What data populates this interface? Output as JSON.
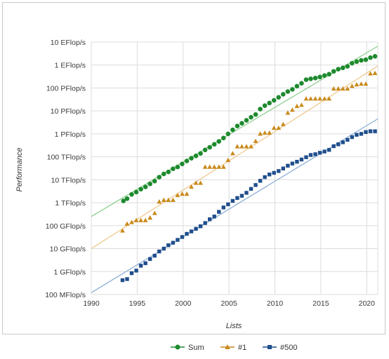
{
  "chart_data": {
    "type": "scatter",
    "title": "",
    "xlabel": "Lists",
    "ylabel": "Performance",
    "x_ticks": [
      "1990",
      "1995",
      "2000",
      "2005",
      "2010",
      "2015",
      "2020"
    ],
    "xlim": [
      1990,
      2021.2
    ],
    "y_scale": "log",
    "y_unit": "MFlop/s",
    "y_ticks": [
      {
        "label": "100 MFlop/s",
        "value": 100.0
      },
      {
        "label": "1 GFlop/s",
        "value": 1000.0
      },
      {
        "label": "10 GFlop/s",
        "value": 10000.0
      },
      {
        "label": "100 GFlop/s",
        "value": 100000.0
      },
      {
        "label": "1 TFlop/s",
        "value": 1000000.0
      },
      {
        "label": "10 TFlop/s",
        "value": 10000000.0
      },
      {
        "label": "100 TFlop/s",
        "value": 100000000.0
      },
      {
        "label": "1 PFlop/s",
        "value": 1000000000.0
      },
      {
        "label": "10 PFlop/s",
        "value": 10000000000.0
      },
      {
        "label": "100 PFlop/s",
        "value": 100000000000.0
      },
      {
        "label": "1 EFlop/s",
        "value": 1000000000000.0
      },
      {
        "label": "10 EFlop/s",
        "value": 10000000000000.0
      }
    ],
    "grid": true,
    "legend_position": "bottom",
    "series": [
      {
        "name": "Sum",
        "color": "#1e8a2e",
        "marker": "circle",
        "trend_color": "#8fd08f",
        "trend_line": {
          "x": [
            1990,
            2021.2
          ],
          "y": [
            250000.0,
            6600000000000.0
          ]
        },
        "points": [
          [
            1993.5,
            1200000.0
          ],
          [
            1993.9,
            1500000.0
          ],
          [
            1994.4,
            2300000.0
          ],
          [
            1994.9,
            2900000.0
          ],
          [
            1995.4,
            3900000.0
          ],
          [
            1995.9,
            4900000.0
          ],
          [
            1996.4,
            6600000.0
          ],
          [
            1996.9,
            8700000.0
          ],
          [
            1997.4,
            13000000.0
          ],
          [
            1997.9,
            18000000.0
          ],
          [
            1998.4,
            22000000.0
          ],
          [
            1998.9,
            30000000.0
          ],
          [
            1999.4,
            36000000.0
          ],
          [
            1999.9,
            49000000.0
          ],
          [
            2000.4,
            66000000.0
          ],
          [
            2000.9,
            87000000.0
          ],
          [
            2001.4,
            110000000.0
          ],
          [
            2001.9,
            140000000.0
          ],
          [
            2002.4,
            200000000.0
          ],
          [
            2002.9,
            260000000.0
          ],
          [
            2003.4,
            350000000.0
          ],
          [
            2003.9,
            470000000.0
          ],
          [
            2004.4,
            660000000.0
          ],
          [
            2004.9,
            1000000000.0
          ],
          [
            2005.4,
            1500000000.0
          ],
          [
            2005.9,
            2200000000.0
          ],
          [
            2006.4,
            2900000000.0
          ],
          [
            2006.9,
            3900000000.0
          ],
          [
            2007.4,
            5300000000.0
          ],
          [
            2007.9,
            7000000000.0
          ],
          [
            2008.4,
            12000000000.0
          ],
          [
            2008.9,
            17000000000.0
          ],
          [
            2009.4,
            22000000000.0
          ],
          [
            2009.9,
            29000000000.0
          ],
          [
            2010.4,
            39000000000.0
          ],
          [
            2010.9,
            53000000000.0
          ],
          [
            2011.4,
            70000000000.0
          ],
          [
            2011.9,
            87000000000.0
          ],
          [
            2012.4,
            120000000000.0
          ],
          [
            2012.9,
            160000000000.0
          ],
          [
            2013.4,
            230000000000.0
          ],
          [
            2013.9,
            250000000000.0
          ],
          [
            2014.4,
            270000000000.0
          ],
          [
            2014.9,
            300000000000.0
          ],
          [
            2015.4,
            350000000000.0
          ],
          [
            2015.9,
            400000000000.0
          ],
          [
            2016.4,
            530000000000.0
          ],
          [
            2016.9,
            660000000000.0
          ],
          [
            2017.4,
            750000000000.0
          ],
          [
            2017.9,
            880000000000.0
          ],
          [
            2018.4,
            1200000000000.0
          ],
          [
            2018.9,
            1400000000000.0
          ],
          [
            2019.4,
            1600000000000.0
          ],
          [
            2019.9,
            1700000000000.0
          ],
          [
            2020.4,
            2100000000000.0
          ],
          [
            2020.9,
            2400000000000.0
          ]
        ]
      },
      {
        "name": "#1",
        "color": "#c98a1b",
        "marker": "triangle",
        "trend_color": "#efc88f",
        "trend_line": {
          "x": [
            1990,
            2021.2
          ],
          "y": [
            10000.0,
            900000000000.0
          ]
        },
        "points": [
          [
            1993.4,
            60000.0
          ],
          [
            1993.9,
            120000.0
          ],
          [
            1994.4,
            140000.0
          ],
          [
            1994.9,
            170000.0
          ],
          [
            1995.4,
            170000.0
          ],
          [
            1995.9,
            170000.0
          ],
          [
            1996.4,
            220000.0
          ],
          [
            1996.9,
            350000.0
          ],
          [
            1997.4,
            1100000.0
          ],
          [
            1997.9,
            1300000.0
          ],
          [
            1998.4,
            1300000.0
          ],
          [
            1998.9,
            1300000.0
          ],
          [
            1999.4,
            2100000.0
          ],
          [
            1999.9,
            2400000.0
          ],
          [
            2000.4,
            2400000.0
          ],
          [
            2000.9,
            4900000.0
          ],
          [
            2001.4,
            7200000.0
          ],
          [
            2001.9,
            7200000.0
          ],
          [
            2002.4,
            36000000.0
          ],
          [
            2002.9,
            36000000.0
          ],
          [
            2003.4,
            36000000.0
          ],
          [
            2003.9,
            36000000.0
          ],
          [
            2004.4,
            36000000.0
          ],
          [
            2004.9,
            71000000.0
          ],
          [
            2005.4,
            140000000.0
          ],
          [
            2005.9,
            280000000.0
          ],
          [
            2006.4,
            280000000.0
          ],
          [
            2006.9,
            280000000.0
          ],
          [
            2007.4,
            280000000.0
          ],
          [
            2007.9,
            480000000.0
          ],
          [
            2008.4,
            1000000000.0
          ],
          [
            2008.9,
            1100000000.0
          ],
          [
            2009.4,
            1100000000.0
          ],
          [
            2009.9,
            1800000000.0
          ],
          [
            2010.4,
            1800000000.0
          ],
          [
            2010.9,
            2600000000.0
          ],
          [
            2011.4,
            8200000000.0
          ],
          [
            2011.9,
            11000000000.0
          ],
          [
            2012.4,
            16000000000.0
          ],
          [
            2012.9,
            18000000000.0
          ],
          [
            2013.4,
            34000000000.0
          ],
          [
            2013.9,
            34000000000.0
          ],
          [
            2014.4,
            34000000000.0
          ],
          [
            2014.9,
            34000000000.0
          ],
          [
            2015.4,
            34000000000.0
          ],
          [
            2015.9,
            34000000000.0
          ],
          [
            2016.4,
            93000000000.0
          ],
          [
            2016.9,
            93000000000.0
          ],
          [
            2017.4,
            93000000000.0
          ],
          [
            2017.9,
            93000000000.0
          ],
          [
            2018.4,
            120000000000.0
          ],
          [
            2018.9,
            140000000000.0
          ],
          [
            2019.4,
            150000000000.0
          ],
          [
            2019.9,
            150000000000.0
          ],
          [
            2020.4,
            420000000000.0
          ],
          [
            2020.9,
            440000000000.0
          ]
        ]
      },
      {
        "name": "#500",
        "color": "#1f4e8c",
        "marker": "square",
        "trend_color": "#8fb0d8",
        "trend_line": {
          "x": [
            1990,
            2021.2
          ],
          "y": [
            120.0,
            4500000000.0
          ]
        },
        "points": [
          [
            1993.4,
            420.0
          ],
          [
            1993.9,
            470.0
          ],
          [
            1994.4,
            850.0
          ],
          [
            1994.9,
            1100.0
          ],
          [
            1995.4,
            1800.0
          ],
          [
            1995.9,
            2300.0
          ],
          [
            1996.4,
            3500.0
          ],
          [
            1996.9,
            4900.0
          ],
          [
            1997.4,
            7500.0
          ],
          [
            1997.9,
            10000.0
          ],
          [
            1998.4,
            14000.0
          ],
          [
            1998.9,
            18000.0
          ],
          [
            1999.4,
            24000.0
          ],
          [
            1999.9,
            32000.0
          ],
          [
            2000.4,
            44000.0
          ],
          [
            2000.9,
            56000.0
          ],
          [
            2001.4,
            73000.0
          ],
          [
            2001.9,
            94000.0
          ],
          [
            2002.4,
            130000.0
          ],
          [
            2002.9,
            190000.0
          ],
          [
            2003.4,
            250000.0
          ],
          [
            2003.9,
            400000.0
          ],
          [
            2004.4,
            620000.0
          ],
          [
            2004.9,
            850000.0
          ],
          [
            2005.4,
            1200000.0
          ],
          [
            2005.9,
            1600000.0
          ],
          [
            2006.4,
            2000000.0
          ],
          [
            2006.9,
            2700000.0
          ],
          [
            2007.4,
            4000000.0
          ],
          [
            2007.9,
            5900000.0
          ],
          [
            2008.4,
            9000000.0
          ],
          [
            2008.9,
            13000000.0
          ],
          [
            2009.4,
            17000000.0
          ],
          [
            2009.9,
            20000000.0
          ],
          [
            2010.4,
            24000000.0
          ],
          [
            2010.9,
            31000000.0
          ],
          [
            2011.4,
            41000000.0
          ],
          [
            2011.9,
            51000000.0
          ],
          [
            2012.4,
            61000000.0
          ],
          [
            2012.9,
            76000000.0
          ],
          [
            2013.4,
            96000000.0
          ],
          [
            2013.9,
            120000000.0
          ],
          [
            2014.4,
            130000000.0
          ],
          [
            2014.9,
            150000000.0
          ],
          [
            2015.4,
            170000000.0
          ],
          [
            2015.9,
            200000000.0
          ],
          [
            2016.4,
            290000000.0
          ],
          [
            2016.9,
            350000000.0
          ],
          [
            2017.4,
            430000000.0
          ],
          [
            2017.9,
            550000000.0
          ],
          [
            2018.4,
            720000000.0
          ],
          [
            2018.9,
            910000000.0
          ],
          [
            2019.4,
            1000000000.0
          ],
          [
            2019.9,
            1200000000.0
          ],
          [
            2020.4,
            1300000000.0
          ],
          [
            2020.9,
            1300000000.0
          ]
        ]
      }
    ]
  }
}
